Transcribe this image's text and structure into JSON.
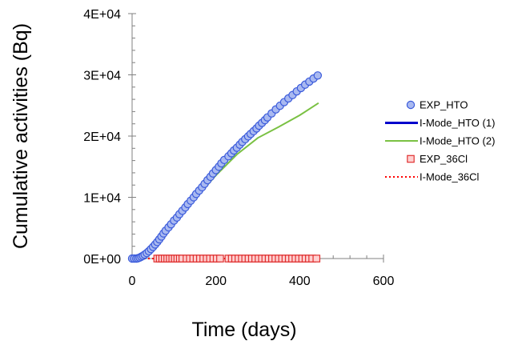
{
  "chart_data": {
    "type": "scatter",
    "title": "",
    "xlabel": "Time (days)",
    "ylabel": "Cumulative activities (Bq)",
    "xlim": [
      0,
      600
    ],
    "ylim": [
      0,
      40000
    ],
    "x_ticks": [
      0,
      200,
      400,
      600
    ],
    "x_tick_labels": [
      "0",
      "200",
      "400",
      "600"
    ],
    "y_ticks": [
      0,
      10000,
      20000,
      30000,
      40000
    ],
    "y_tick_labels": [
      "0E+00",
      "1E+04",
      "2E+04",
      "3E+04",
      "4E+04"
    ],
    "grid": false,
    "legend_position": "right",
    "series": [
      {
        "name": "EXP_HTO",
        "kind": "markers",
        "marker": "circle",
        "color": "#3b5bdb",
        "fill": "#a9b9f0",
        "x": [
          0,
          5,
          10,
          14,
          18,
          22,
          26,
          30,
          35,
          40,
          45,
          50,
          55,
          60,
          65,
          70,
          75,
          80,
          87,
          93,
          100,
          107,
          113,
          120,
          127,
          133,
          140,
          147,
          153,
          160,
          167,
          173,
          180,
          187,
          193,
          200,
          207,
          213,
          220,
          230,
          237,
          243,
          250,
          257,
          263,
          270,
          277,
          283,
          290,
          297,
          303,
          310,
          317,
          323,
          333,
          343,
          353,
          363,
          373,
          383,
          393,
          403,
          413,
          423,
          433,
          443
        ],
        "y": [
          0,
          0,
          0,
          50,
          150,
          300,
          450,
          650,
          900,
          1200,
          1550,
          1900,
          2300,
          2700,
          3150,
          3600,
          4100,
          4550,
          5100,
          5600,
          6200,
          6700,
          7250,
          7800,
          8350,
          8900,
          9450,
          10000,
          10550,
          11100,
          11650,
          12200,
          12800,
          13350,
          13900,
          14450,
          15000,
          15550,
          16100,
          16700,
          17200,
          17650,
          18100,
          18600,
          19050,
          19500,
          19950,
          20350,
          20800,
          21250,
          21700,
          22150,
          22600,
          23050,
          23700,
          24350,
          24950,
          25550,
          26150,
          26700,
          27300,
          27850,
          28400,
          28900,
          29400,
          29900
        ]
      },
      {
        "name": "I-Mode_HTO (1)",
        "kind": "line",
        "color": "#0000cc",
        "dash": "solid",
        "width": 3,
        "x": [
          0,
          15,
          30,
          50,
          100,
          150,
          200,
          250,
          300,
          350,
          400,
          445
        ],
        "y": [
          0,
          50,
          350,
          1500,
          6000,
          10200,
          14200,
          18000,
          21300,
          24600,
          27500,
          30000
        ]
      },
      {
        "name": "I-Mode_HTO (2)",
        "kind": "line",
        "color": "#7ac143",
        "dash": "solid",
        "width": 2,
        "x": [
          0,
          15,
          30,
          50,
          100,
          150,
          200,
          250,
          300,
          350,
          400,
          445
        ],
        "y": [
          0,
          40,
          300,
          1300,
          5600,
          9700,
          13600,
          17000,
          19700,
          21500,
          23400,
          25400
        ]
      },
      {
        "name": "EXP_36Cl",
        "kind": "markers",
        "marker": "square",
        "color": "#e03131",
        "fill": "#ffd0d0",
        "x": [
          60,
          66,
          72,
          78,
          84,
          90,
          96,
          102,
          108,
          114,
          120,
          130,
          138,
          146,
          154,
          162,
          170,
          178,
          186,
          194,
          202,
          210,
          230,
          238,
          246,
          254,
          262,
          270,
          278,
          286,
          294,
          302,
          310,
          318,
          326,
          334,
          342,
          350,
          358,
          366,
          374,
          382,
          390,
          398,
          406,
          414,
          422,
          430,
          440
        ],
        "y": [
          0,
          0,
          0,
          0,
          0,
          0,
          0,
          0,
          0,
          0,
          0,
          0,
          0,
          0,
          0,
          0,
          0,
          0,
          0,
          0,
          0,
          0,
          0,
          0,
          0,
          0,
          0,
          0,
          0,
          0,
          0,
          0,
          0,
          0,
          0,
          0,
          0,
          0,
          0,
          0,
          0,
          0,
          0,
          0,
          0,
          0,
          0,
          0,
          0
        ]
      },
      {
        "name": "I-Mode_36Cl",
        "kind": "line",
        "color": "#ff0000",
        "dash": "dotted",
        "width": 2,
        "x": [
          0,
          445
        ],
        "y": [
          0,
          0
        ]
      }
    ]
  }
}
